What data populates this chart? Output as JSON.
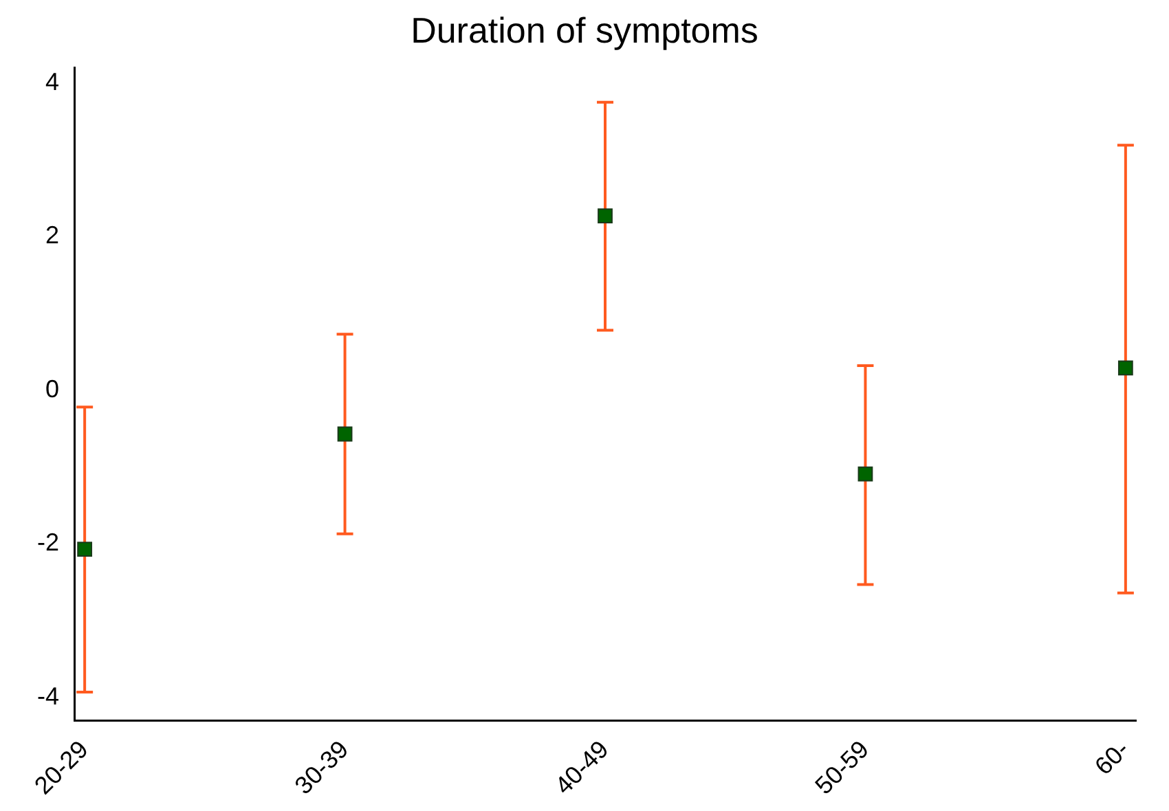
{
  "chart_data": {
    "type": "scatter",
    "title": "Duration of symptoms",
    "categories": [
      "20-29",
      "30-39",
      "40-49",
      "50-59",
      "60-"
    ],
    "series": [
      {
        "color": "#006400",
        "values": [
          -2.07,
          -0.57,
          2.27,
          -1.09,
          0.29
        ],
        "errors": [
          [
            -3.93,
            -0.22
          ],
          [
            -1.87,
            0.73
          ],
          [
            0.78,
            3.75
          ],
          [
            -2.53,
            0.32
          ],
          [
            -2.64,
            3.19
          ]
        ]
      }
    ],
    "ylim": [
      -4.3,
      4.2
    ],
    "yticks": [
      -4,
      -2,
      0,
      2,
      4
    ],
    "grid": false,
    "legend": false,
    "marker": "square"
  }
}
